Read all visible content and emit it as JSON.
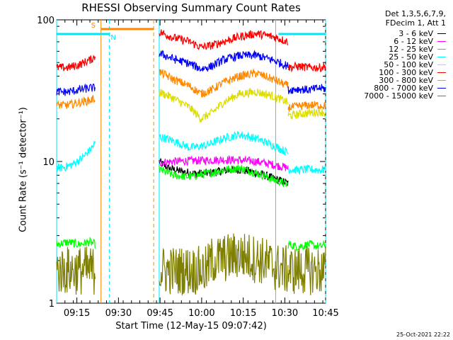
{
  "chart_data": {
    "type": "line",
    "title": "RHESSI Observing Summary Count Rates",
    "xlabel": "Start Time (12-May-15 09:07:42)",
    "ylabel": "Count Rate (s⁻¹ detector⁻¹)",
    "yscale": "log",
    "ylim": [
      1,
      100
    ],
    "xlim_minutes": [
      0,
      97
    ],
    "y_ticks": [
      {
        "value": 1,
        "label": "1"
      },
      {
        "value": 10,
        "label": "10"
      },
      {
        "value": 100,
        "label": "100"
      }
    ],
    "x_ticks": [
      {
        "minute": 7.3,
        "label": "09:15"
      },
      {
        "minute": 22.3,
        "label": "09:30"
      },
      {
        "minute": 37.3,
        "label": "09:45"
      },
      {
        "minute": 52.3,
        "label": "10:00"
      },
      {
        "minute": 67.3,
        "label": "10:15"
      },
      {
        "minute": 82.3,
        "label": "10:30"
      },
      {
        "minute": 97.3,
        "label": "10:45"
      }
    ],
    "legend_header": [
      "Det 1,3,5,6,7,9,",
      "FDecim 1, Att 1"
    ],
    "legend_position": "right",
    "flags": [
      {
        "label": "S",
        "start_minute": 16,
        "end_minute": 35,
        "color": "#ff8800"
      },
      {
        "label": "N",
        "start_minute": 0,
        "end_minute": 19,
        "color": "#00e5ff"
      },
      {
        "label": "",
        "start_minute": 80,
        "end_minute": 97,
        "color": "#00e5ff"
      }
    ],
    "vlines": [
      {
        "minute": 16,
        "color": "#ff8800",
        "style": "solid"
      },
      {
        "minute": 35,
        "color": "#ff8800",
        "style": "dashed"
      },
      {
        "minute": 0,
        "color": "#00e5ff",
        "style": "solid"
      },
      {
        "minute": 19,
        "color": "#00e5ff",
        "style": "dashed"
      },
      {
        "minute": 37,
        "color": "#00e5ff",
        "style": "solid"
      },
      {
        "minute": 79,
        "color": "#00e5ff",
        "style": "solid"
      },
      {
        "minute": 97,
        "color": "#00e5ff",
        "style": "dashed"
      }
    ],
    "series": [
      {
        "name": "3 - 6 keV",
        "color": "#000000",
        "segments": [
          {
            "x": [
              37,
              40,
              45,
              50,
              55,
              60,
              65,
              70,
              75,
              79,
              83.5
            ],
            "y": [
              10,
              9,
              8.5,
              8.2,
              8.3,
              8.6,
              8.8,
              8.5,
              8.0,
              7.5,
              7.0
            ]
          }
        ]
      },
      {
        "name": "6 - 12 keV",
        "color": "#ff00ff",
        "segments": [
          {
            "x": [
              37,
              42,
              48,
              54,
              60,
              66,
              72,
              78,
              83.5
            ],
            "y": [
              9.8,
              10.0,
              10.1,
              10.2,
              10.3,
              10.2,
              10.0,
              9.5,
              9.0
            ]
          }
        ]
      },
      {
        "name": "12 - 25 keV",
        "color": "#00ff00",
        "segments": [
          {
            "x": [
              0,
              4,
              8,
              12,
              14
            ],
            "y": [
              2.6,
              2.7,
              2.6,
              2.7,
              2.6
            ]
          },
          {
            "x": [
              37,
              42,
              48,
              54,
              60,
              66,
              72,
              78,
              83.5
            ],
            "y": [
              8.8,
              8.0,
              7.8,
              8.2,
              8.7,
              9.0,
              8.3,
              7.5,
              6.8
            ]
          },
          {
            "x": [
              83.5,
              87,
              91,
              95,
              97
            ],
            "y": [
              2.6,
              2.5,
              2.6,
              2.5,
              2.6
            ]
          }
        ]
      },
      {
        "name": "25 - 50 keV",
        "color": "#00ffff",
        "segments": [
          {
            "x": [
              0,
              3,
              6,
              9,
              12,
              14
            ],
            "y": [
              9.0,
              9.1,
              9.6,
              10.5,
              12.0,
              13.5
            ]
          },
          {
            "x": [
              37,
              42,
              48,
              54,
              60,
              66,
              72,
              78,
              83.5
            ],
            "y": [
              15.0,
              14.0,
              12.5,
              13.0,
              14.5,
              15.5,
              14.5,
              13.0,
              11.5
            ]
          },
          {
            "x": [
              83.5,
              87,
              91,
              95,
              97
            ],
            "y": [
              8.8,
              8.7,
              8.8,
              8.7,
              8.8
            ]
          }
        ]
      },
      {
        "name": "50 - 100 keV",
        "color": "#dddd00",
        "segments": [
          {
            "x": [
              37,
              42,
              48,
              52,
              56,
              60,
              66,
              72,
              78,
              83.5
            ],
            "y": [
              31,
              28,
              24,
              20,
              22,
              26,
              30,
              31,
              29,
              26
            ]
          },
          {
            "x": [
              83.5,
              87,
              91,
              95,
              97
            ],
            "y": [
              21,
              21.5,
              22,
              22.5,
              22
            ]
          }
        ]
      },
      {
        "name": "100 - 300 keV",
        "color": "#ff0000",
        "segments": [
          {
            "x": [
              0,
              4,
              8,
              12,
              14
            ],
            "y": [
              46,
              46,
              48,
              52,
              55
            ]
          },
          {
            "x": [
              37,
              42,
              48,
              52,
              56,
              60,
              66,
              72,
              78,
              83.5
            ],
            "y": [
              82,
              75,
              70,
              64,
              66,
              70,
              76,
              80,
              76,
              70
            ]
          },
          {
            "x": [
              83.5,
              87,
              91,
              95,
              97
            ],
            "y": [
              46,
              47,
              46,
              46,
              47
            ]
          }
        ]
      },
      {
        "name": "300 - 800 keV",
        "color": "#ff8800",
        "segments": [
          {
            "x": [
              0,
              4,
              8,
              12,
              14
            ],
            "y": [
              25,
              25,
              26,
              27,
              28
            ]
          },
          {
            "x": [
              37,
              42,
              48,
              52,
              56,
              60,
              66,
              72,
              78,
              83.5
            ],
            "y": [
              43,
              38,
              34,
              30,
              32,
              36,
              40,
              42,
              38,
              34
            ]
          },
          {
            "x": [
              83.5,
              87,
              91,
              95,
              97
            ],
            "y": [
              24,
              24.5,
              25,
              25,
              24.5
            ]
          }
        ]
      },
      {
        "name": "800 - 7000 keV",
        "color": "#0000ff",
        "segments": [
          {
            "x": [
              0,
              4,
              8,
              12,
              14
            ],
            "y": [
              31,
              31,
              32,
              33,
              33
            ]
          },
          {
            "x": [
              37,
              42,
              48,
              52,
              56,
              60,
              66,
              72,
              78,
              83.5
            ],
            "y": [
              58,
              53,
              49,
              45,
              47,
              52,
              56,
              56,
              52,
              47
            ]
          },
          {
            "x": [
              83.5,
              87,
              91,
              95,
              97
            ],
            "y": [
              32,
              32.5,
              32,
              33,
              32.5
            ]
          }
        ]
      },
      {
        "name": "7000 - 15000 keV",
        "color": "#808000",
        "segments": [
          {
            "x": [
              0,
              4,
              8,
              12,
              14
            ],
            "y": [
              1.7,
              1.7,
              1.7,
              1.7,
              1.7
            ]
          },
          {
            "x": [
              37,
              45,
              54,
              56,
              62,
              66,
              70,
              74,
              79,
              83.5
            ],
            "y": [
              1.7,
              1.7,
              1.7,
              2.0,
              2.1,
              2.2,
              2.1,
              2.0,
              1.8,
              1.7
            ]
          },
          {
            "x": [
              83.5,
              87,
              91,
              95,
              97
            ],
            "y": [
              1.7,
              1.7,
              1.7,
              1.7,
              1.7
            ]
          }
        ]
      }
    ]
  },
  "timestamp": "25-Oct-2021 22:22"
}
